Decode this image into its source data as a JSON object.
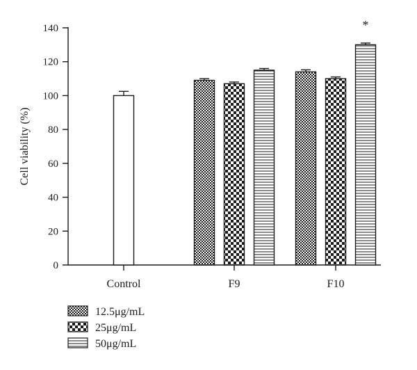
{
  "chart_data": {
    "type": "bar",
    "ylabel": "Cell viability (%)",
    "xlabel": "",
    "ylim": [
      0,
      140
    ],
    "yticks": [
      0,
      20,
      40,
      60,
      80,
      100,
      120,
      140
    ],
    "grid": false,
    "legend_position": "bottom-left",
    "groups": [
      {
        "label": "Control",
        "bars": [
          {
            "value": 100,
            "error": 2.5,
            "pattern": "open"
          }
        ]
      },
      {
        "label": "F9",
        "bars": [
          {
            "value": 109,
            "error": 1.0,
            "pattern": "fine-check"
          },
          {
            "value": 107,
            "error": 1.0,
            "pattern": "coarse-check"
          },
          {
            "value": 115,
            "error": 1.0,
            "pattern": "hlines"
          }
        ]
      },
      {
        "label": "F10",
        "bars": [
          {
            "value": 114,
            "error": 1.2,
            "pattern": "fine-check"
          },
          {
            "value": 110,
            "error": 1.0,
            "pattern": "coarse-check"
          },
          {
            "value": 130,
            "error": 1.0,
            "pattern": "hlines",
            "annotation": "*"
          }
        ]
      }
    ],
    "legend": [
      {
        "label": "12.5μg/mL",
        "pattern": "fine-check"
      },
      {
        "label": "25μg/mL",
        "pattern": "coarse-check"
      },
      {
        "label": "50μg/mL",
        "pattern": "hlines"
      }
    ],
    "colors": {
      "ink": "#1a1a1a",
      "background": "#ffffff"
    }
  }
}
